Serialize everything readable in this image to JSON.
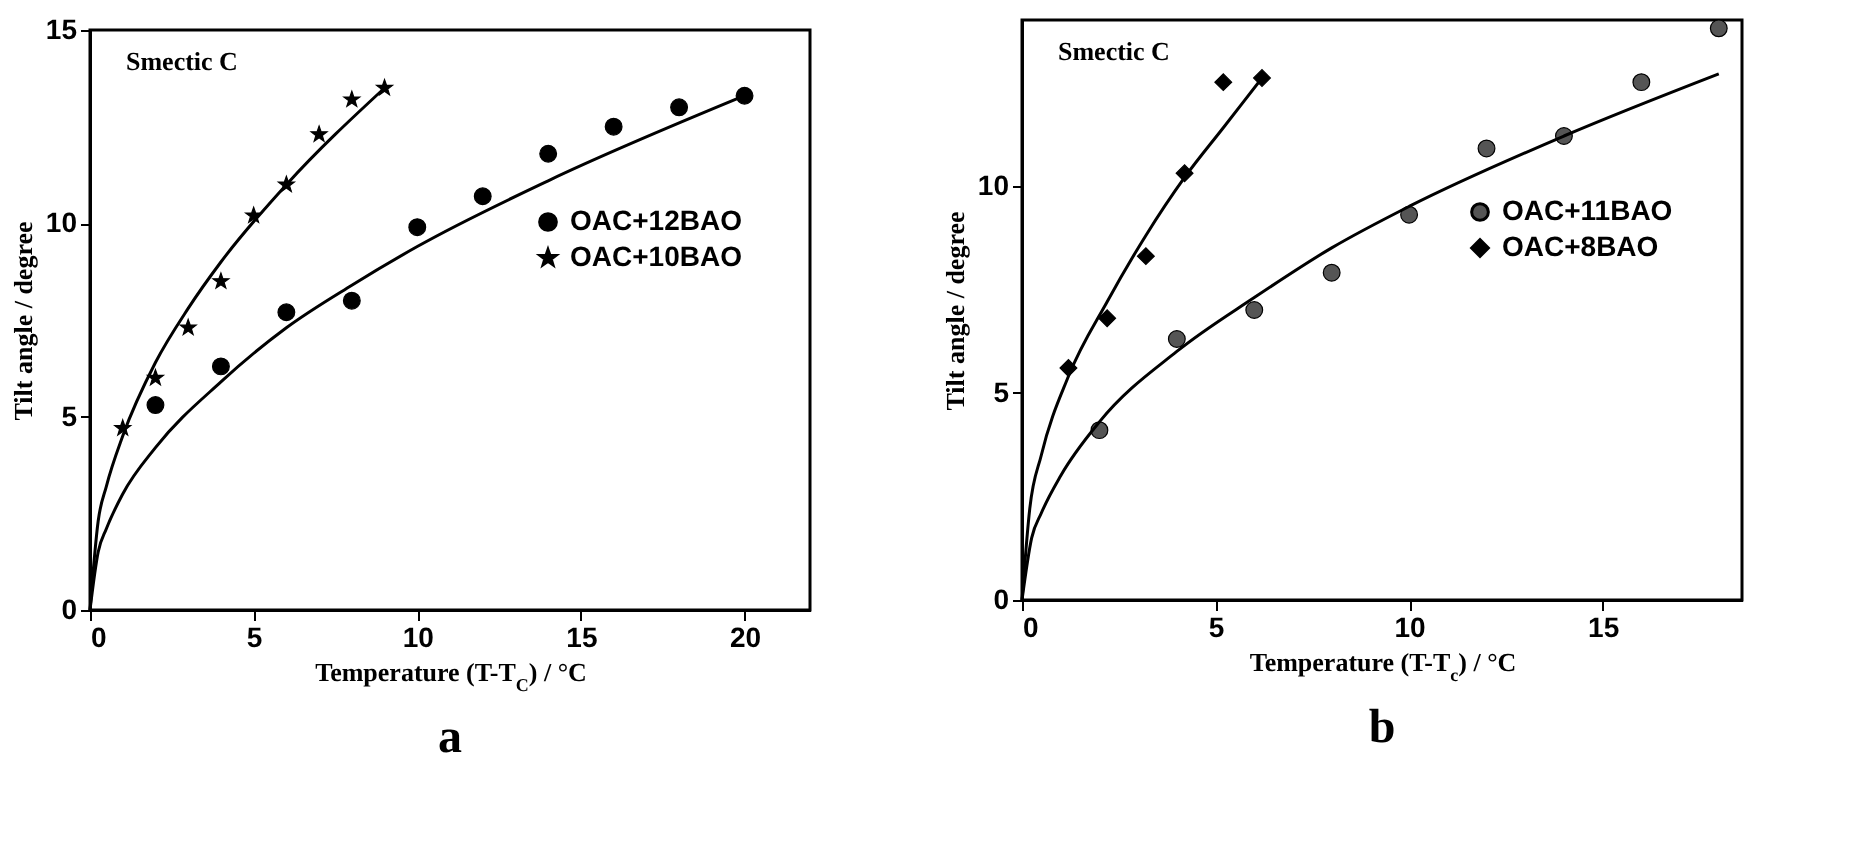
{
  "chart_data": [
    {
      "type": "scatter",
      "title": "a",
      "xlabel": "Temperature (T-T$_{C}$) / °C",
      "ylabel": "Tilt angle / degree",
      "annotations": [
        "Smectic C"
      ],
      "xlim": [
        0,
        22
      ],
      "ylim": [
        0,
        15
      ],
      "xticks": [
        0,
        5,
        10,
        15,
        20
      ],
      "yticks": [
        0,
        5,
        10,
        15
      ],
      "legend": "right",
      "series": [
        {
          "name": "OAC+12BAO",
          "color": "#000000",
          "marker": "circle",
          "x": [
            2,
            4,
            6,
            8,
            10,
            12,
            14,
            16,
            18,
            20
          ],
          "values": [
            5.3,
            6.3,
            7.7,
            8.0,
            9.9,
            10.7,
            11.8,
            12.5,
            13.0,
            13.3
          ]
        },
        {
          "name": "OAC+10BAO",
          "color": "#000000",
          "marker": "star",
          "x": [
            1,
            2,
            3,
            4,
            5,
            6,
            7,
            8,
            9
          ],
          "values": [
            4.7,
            6.0,
            7.3,
            8.5,
            10.2,
            11.0,
            12.3,
            13.2,
            13.5
          ]
        },
        {
          "type": "line",
          "color": "#000000",
          "x": [
            0,
            0.25,
            0.5,
            1,
            2,
            4,
            6,
            8,
            10,
            14,
            20
          ],
          "values": [
            0,
            1.5,
            2.1,
            3.0,
            4.2,
            5.9,
            7.3,
            8.4,
            9.4,
            11.1,
            13.3
          ]
        },
        {
          "type": "line",
          "color": "#000000",
          "x": [
            0,
            0.25,
            0.5,
            1,
            2,
            3,
            4,
            6,
            9
          ],
          "values": [
            0,
            2.3,
            3.2,
            4.5,
            6.4,
            7.8,
            9.0,
            11.0,
            13.5
          ]
        }
      ]
    },
    {
      "type": "scatter",
      "title": "b",
      "xlabel": "Temperature (T-T$_{c}$) / °C",
      "ylabel": "Tilt angle / degree",
      "annotations": [
        "Smectic C"
      ],
      "xlim": [
        0,
        18.6
      ],
      "ylim": [
        0,
        14
      ],
      "xticks": [
        0,
        5,
        10,
        15
      ],
      "yticks": [
        0,
        5,
        10
      ],
      "legend": "right",
      "series": [
        {
          "name": "OAC+11BAO",
          "color": "#555555",
          "marker": "circle",
          "x": [
            2,
            4,
            6,
            8,
            10,
            12,
            14,
            16,
            18
          ],
          "values": [
            4.1,
            6.3,
            7.0,
            7.9,
            9.3,
            10.9,
            11.2,
            12.5,
            13.8
          ]
        },
        {
          "name": "OAC+8BAO",
          "color": "#000000",
          "marker": "diamond",
          "x": [
            1.2,
            2.2,
            3.2,
            4.2,
            5.2,
            6.2
          ],
          "values": [
            5.6,
            6.8,
            8.3,
            10.3,
            12.5,
            12.6
          ]
        },
        {
          "type": "line",
          "color": "#000000",
          "x": [
            0,
            0.25,
            0.5,
            1,
            2,
            4,
            6,
            8,
            10,
            14,
            18
          ],
          "values": [
            0,
            1.5,
            2.1,
            3.0,
            4.3,
            6.0,
            7.3,
            8.5,
            9.5,
            11.2,
            12.7
          ]
        },
        {
          "type": "line",
          "color": "#000000",
          "x": [
            0,
            0.2,
            0.5,
            1.2,
            2.2,
            3.2,
            4.2,
            5.2,
            6.2
          ],
          "values": [
            0,
            2.2,
            3.5,
            5.4,
            7.2,
            8.8,
            10.2,
            11.4,
            12.6
          ]
        }
      ]
    }
  ]
}
